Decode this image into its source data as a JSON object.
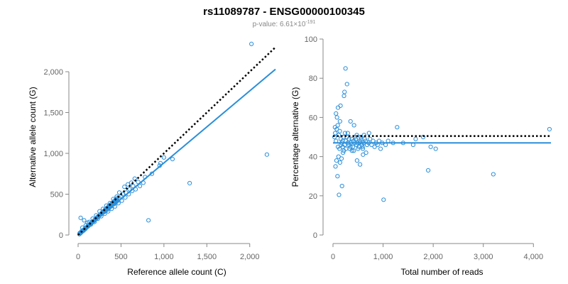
{
  "header": {
    "title": "rs11089787 - ENSG00000100345",
    "pvalue_prefix": "p-value: 6.61×10",
    "pvalue_exponent": "-191"
  },
  "colors": {
    "points": "#2b8fd9",
    "fit_line": "#2b8fd9",
    "reference_line": "#000000",
    "axis": "#888888"
  },
  "chart_data": [
    {
      "type": "scatter",
      "xlabel": "Reference allele count (C)",
      "ylabel": "Alternative allele count (G)",
      "xlim": [
        0,
        2300
      ],
      "ylim": [
        0,
        2400
      ],
      "xticks": [
        0,
        500,
        1000,
        1500,
        2000
      ],
      "xtick_labels": [
        "0",
        "500",
        "1,000",
        "1,500",
        "2,000"
      ],
      "yticks": [
        0,
        500,
        1000,
        1500,
        2000
      ],
      "ytick_labels": [
        "0",
        "500",
        "1,000",
        "1,500",
        "2,000"
      ],
      "points": [
        [
          2020,
          2340
        ],
        [
          2200,
          985
        ],
        [
          1300,
          635
        ],
        [
          1000,
          950
        ],
        [
          1100,
          930
        ],
        [
          960,
          880
        ],
        [
          950,
          850
        ],
        [
          820,
          180
        ],
        [
          860,
          750
        ],
        [
          780,
          710
        ],
        [
          700,
          650
        ],
        [
          640,
          600
        ],
        [
          600,
          560
        ],
        [
          560,
          520
        ],
        [
          520,
          500
        ],
        [
          500,
          470
        ],
        [
          480,
          450
        ],
        [
          460,
          420
        ],
        [
          440,
          400
        ],
        [
          420,
          380
        ],
        [
          400,
          370
        ],
        [
          380,
          350
        ],
        [
          360,
          330
        ],
        [
          340,
          310
        ],
        [
          320,
          300
        ],
        [
          300,
          280
        ],
        [
          280,
          265
        ],
        [
          260,
          250
        ],
        [
          240,
          230
        ],
        [
          220,
          210
        ],
        [
          200,
          190
        ],
        [
          180,
          170
        ],
        [
          160,
          155
        ],
        [
          140,
          135
        ],
        [
          120,
          115
        ],
        [
          100,
          95
        ],
        [
          80,
          80
        ],
        [
          60,
          60
        ],
        [
          40,
          45
        ],
        [
          20,
          25
        ],
        [
          540,
          590
        ],
        [
          580,
          620
        ],
        [
          620,
          640
        ],
        [
          660,
          690
        ],
        [
          480,
          520
        ],
        [
          450,
          470
        ],
        [
          410,
          440
        ],
        [
          370,
          390
        ],
        [
          330,
          360
        ],
        [
          290,
          320
        ],
        [
          250,
          290
        ],
        [
          210,
          240
        ],
        [
          170,
          200
        ],
        [
          130,
          160
        ],
        [
          90,
          120
        ],
        [
          50,
          90
        ],
        [
          30,
          210
        ],
        [
          70,
          180
        ],
        [
          110,
          150
        ],
        [
          150,
          130
        ],
        [
          190,
          160
        ],
        [
          230,
          200
        ],
        [
          270,
          230
        ],
        [
          310,
          260
        ],
        [
          350,
          290
        ],
        [
          390,
          320
        ],
        [
          430,
          350
        ],
        [
          470,
          390
        ],
        [
          510,
          420
        ],
        [
          550,
          460
        ],
        [
          590,
          500
        ],
        [
          630,
          540
        ],
        [
          670,
          560
        ],
        [
          720,
          600
        ],
        [
          760,
          640
        ],
        [
          15,
          10
        ],
        [
          25,
          20
        ],
        [
          35,
          30
        ],
        [
          45,
          40
        ],
        [
          55,
          50
        ],
        [
          65,
          55
        ],
        [
          75,
          70
        ],
        [
          85,
          75
        ],
        [
          95,
          90
        ],
        [
          105,
          100
        ],
        [
          115,
          105
        ],
        [
          125,
          120
        ],
        [
          135,
          125
        ],
        [
          145,
          140
        ],
        [
          155,
          145
        ],
        [
          165,
          160
        ],
        [
          175,
          165
        ],
        [
          185,
          175
        ],
        [
          195,
          185
        ],
        [
          205,
          200
        ],
        [
          215,
          205
        ],
        [
          225,
          220
        ],
        [
          235,
          225
        ],
        [
          245,
          240
        ],
        [
          255,
          245
        ],
        [
          265,
          255
        ],
        [
          275,
          270
        ],
        [
          285,
          275
        ],
        [
          295,
          290
        ],
        [
          305,
          295
        ],
        [
          315,
          310
        ],
        [
          325,
          315
        ],
        [
          335,
          330
        ],
        [
          345,
          335
        ],
        [
          355,
          350
        ],
        [
          365,
          355
        ],
        [
          375,
          370
        ],
        [
          385,
          375
        ],
        [
          395,
          390
        ],
        [
          405,
          395
        ],
        [
          415,
          410
        ],
        [
          425,
          415
        ],
        [
          435,
          430
        ],
        [
          445,
          435
        ],
        [
          455,
          450
        ]
      ],
      "fit_line": [
        [
          0,
          0
        ],
        [
          2300,
          2030
        ]
      ],
      "reference_line": [
        [
          0,
          0
        ],
        [
          2300,
          2300
        ]
      ]
    },
    {
      "type": "scatter",
      "xlabel": "Total number of reads",
      "ylabel": "Percentage alternative (G)",
      "xlim": [
        0,
        4350
      ],
      "ylim": [
        0,
        100
      ],
      "xticks": [
        0,
        1000,
        2000,
        3000,
        4000
      ],
      "xtick_labels": [
        "0",
        "1,000",
        "2,000",
        "3,000",
        "4,000"
      ],
      "yticks": [
        0,
        20,
        40,
        60,
        80,
        100
      ],
      "ytick_labels": [
        "0",
        "20",
        "40",
        "60",
        "80",
        "100"
      ],
      "points": [
        [
          250,
          85
        ],
        [
          280,
          77
        ],
        [
          230,
          73
        ],
        [
          220,
          71
        ],
        [
          150,
          66
        ],
        [
          100,
          65
        ],
        [
          80,
          60
        ],
        [
          60,
          62
        ],
        [
          140,
          58
        ],
        [
          40,
          55
        ],
        [
          30,
          50
        ],
        [
          120,
          20.5
        ],
        [
          180,
          25
        ],
        [
          90,
          30
        ],
        [
          50,
          35
        ],
        [
          70,
          38
        ],
        [
          110,
          40
        ],
        [
          130,
          44
        ],
        [
          160,
          46
        ],
        [
          190,
          48
        ],
        [
          210,
          50
        ],
        [
          240,
          52
        ],
        [
          260,
          44
        ],
        [
          290,
          47
        ],
        [
          320,
          49
        ],
        [
          350,
          45
        ],
        [
          380,
          43
        ],
        [
          410,
          48
        ],
        [
          440,
          50
        ],
        [
          470,
          46
        ],
        [
          500,
          44
        ],
        [
          530,
          47
        ],
        [
          560,
          49
        ],
        [
          590,
          45
        ],
        [
          620,
          51
        ],
        [
          650,
          48
        ],
        [
          680,
          46
        ],
        [
          710,
          47
        ],
        [
          740,
          49
        ],
        [
          770,
          46
        ],
        [
          800,
          48
        ],
        [
          830,
          45
        ],
        [
          860,
          47
        ],
        [
          890,
          46
        ],
        [
          920,
          48
        ],
        [
          950,
          44
        ],
        [
          980,
          47
        ],
        [
          1010,
          18
        ],
        [
          1050,
          46
        ],
        [
          1100,
          48
        ],
        [
          1200,
          47
        ],
        [
          1280,
          55
        ],
        [
          1400,
          47
        ],
        [
          1600,
          46
        ],
        [
          1650,
          49
        ],
        [
          1800,
          50
        ],
        [
          1900,
          33
        ],
        [
          1950,
          45
        ],
        [
          2050,
          44
        ],
        [
          3200,
          31
        ],
        [
          4320,
          54
        ],
        [
          350,
          58
        ],
        [
          420,
          56
        ],
        [
          480,
          38
        ],
        [
          540,
          36
        ],
        [
          600,
          41
        ],
        [
          660,
          42
        ],
        [
          720,
          52
        ],
        [
          200,
          42
        ],
        [
          170,
          39
        ],
        [
          140,
          37
        ],
        [
          100,
          45
        ],
        [
          60,
          48
        ],
        [
          45,
          52
        ],
        [
          75,
          54
        ],
        [
          95,
          56
        ],
        [
          115,
          51
        ],
        [
          135,
          53
        ],
        [
          155,
          49
        ],
        [
          175,
          47
        ],
        [
          195,
          45
        ],
        [
          215,
          43
        ],
        [
          235,
          46
        ],
        [
          255,
          48
        ],
        [
          275,
          50
        ],
        [
          295,
          52
        ],
        [
          315,
          46
        ],
        [
          335,
          44
        ],
        [
          355,
          47
        ],
        [
          375,
          49
        ],
        [
          395,
          45
        ],
        [
          415,
          43
        ],
        [
          435,
          47
        ],
        [
          455,
          49
        ],
        [
          475,
          51
        ],
        [
          495,
          47
        ],
        [
          515,
          45
        ],
        [
          535,
          48
        ],
        [
          555,
          50
        ],
        [
          575,
          46
        ],
        [
          595,
          44
        ],
        [
          615,
          47
        ],
        [
          635,
          49
        ]
      ],
      "fit_line": [
        [
          0,
          47
        ],
        [
          4350,
          47
        ]
      ],
      "reference_line": [
        [
          0,
          50.5
        ],
        [
          4350,
          50.5
        ]
      ]
    }
  ]
}
